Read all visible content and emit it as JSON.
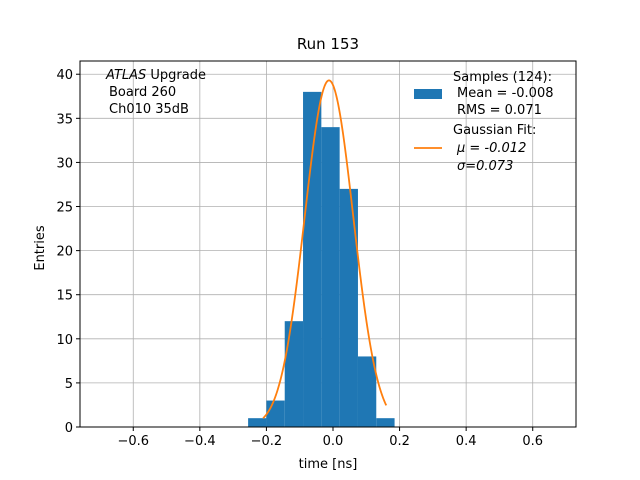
{
  "chart_data": {
    "type": "bar",
    "title": "Run 153",
    "xlabel": "time [ns]",
    "ylabel": "Entries",
    "xlim": [
      -0.76,
      0.73
    ],
    "ylim": [
      0,
      41.5
    ],
    "xticks": [
      -0.6,
      -0.4,
      -0.2,
      0.0,
      0.2,
      0.4,
      0.6
    ],
    "xtick_labels": [
      "−0.6",
      "−0.4",
      "−0.2",
      "0.0",
      "0.2",
      "0.4",
      "0.6"
    ],
    "yticks": [
      0,
      5,
      10,
      15,
      20,
      25,
      30,
      35,
      40
    ],
    "ytick_labels": [
      "0",
      "5",
      "10",
      "15",
      "20",
      "25",
      "30",
      "35",
      "40"
    ],
    "grid": true,
    "bin_edges": [
      -0.255,
      -0.2,
      -0.145,
      -0.09,
      -0.035,
      0.02,
      0.075,
      0.13,
      0.185
    ],
    "bin_counts": [
      1,
      3,
      12,
      38,
      34,
      27,
      8,
      1
    ],
    "histogram_color": "#1f77b4",
    "fit": {
      "color": "#ff7f0e",
      "amplitude": 39.3,
      "mu": -0.012,
      "sigma": 0.073,
      "x_range": [
        -0.21,
        0.16
      ]
    },
    "annotation_lines": [
      "ATLAS Upgrade",
      "Board 260",
      "Ch010 35dB"
    ],
    "legend": {
      "position": "top-right",
      "entries": [
        {
          "label": "Samples (124):",
          "detail": [
            "Mean = -0.008",
            "RMS = 0.071"
          ],
          "kind": "patch",
          "color": "#1f77b4"
        },
        {
          "label": "Gaussian Fit:",
          "detail": [
            "μ = -0.012",
            "σ=0.073"
          ],
          "kind": "line",
          "color": "#ff7f0e"
        }
      ]
    }
  }
}
